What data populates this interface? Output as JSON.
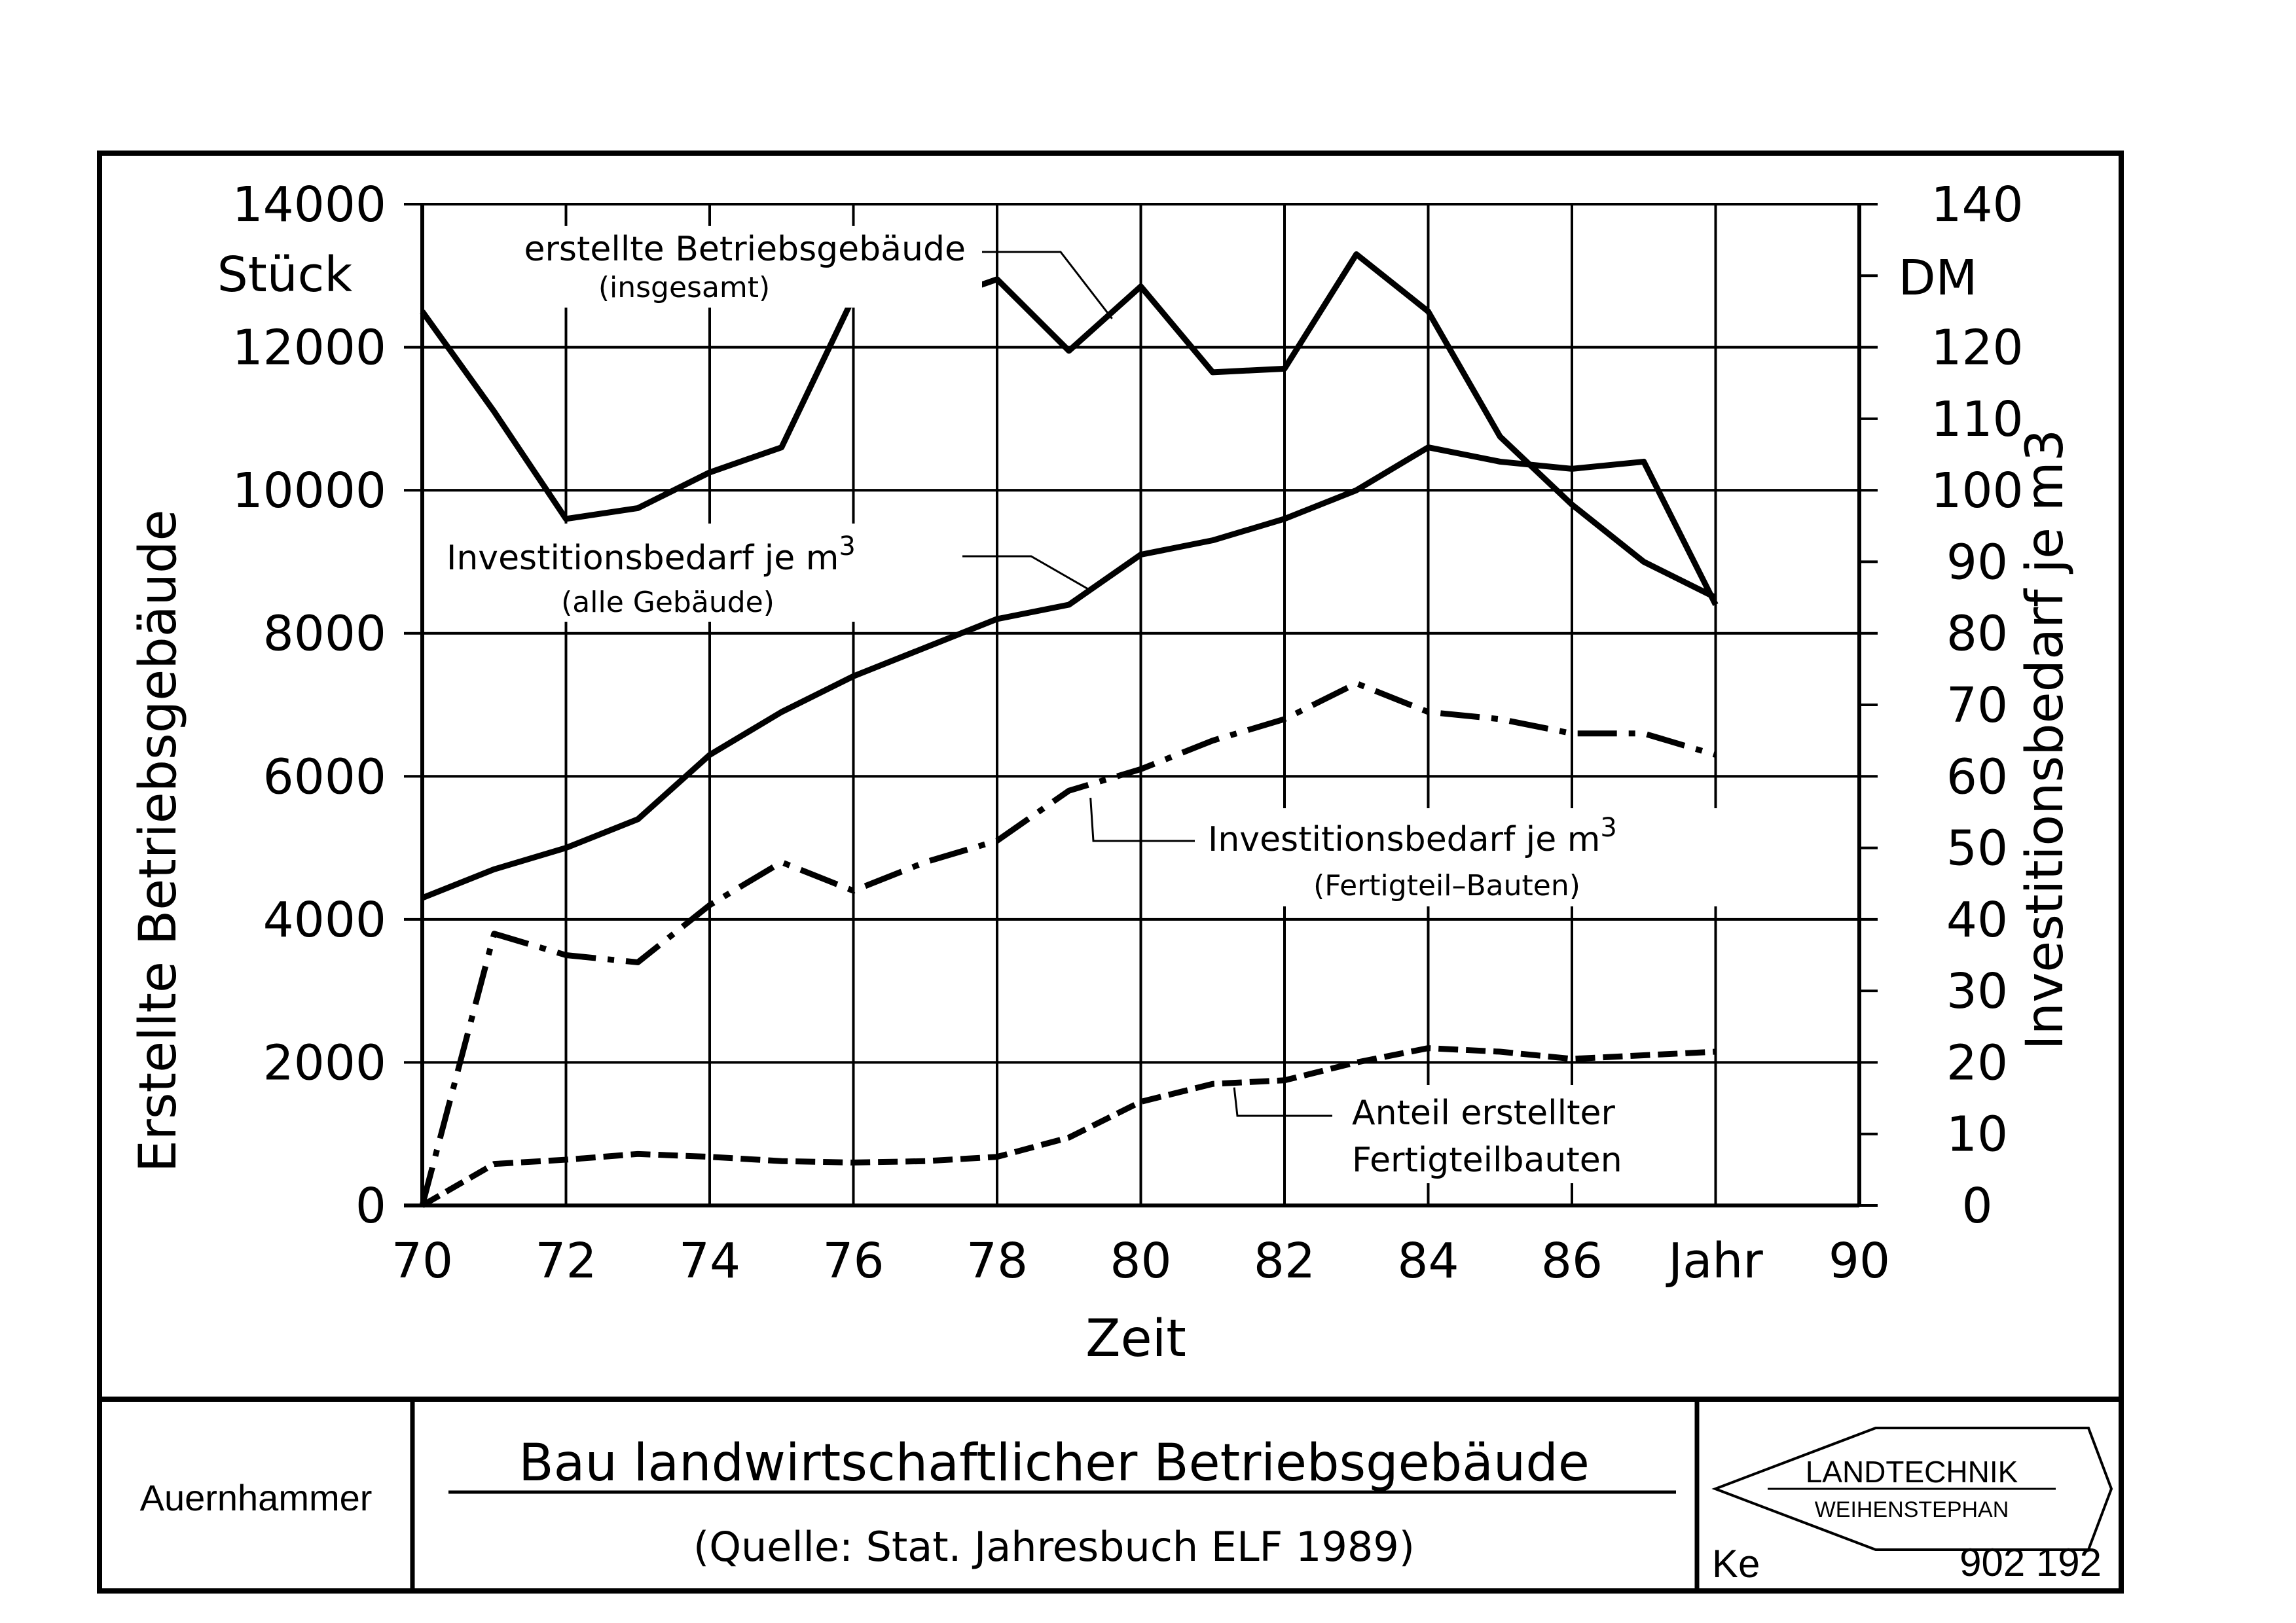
{
  "chart_data": {
    "type": "line",
    "x_axis": {
      "label": "Zeit",
      "min": 70,
      "max": 90,
      "ticks": [
        "70",
        "72",
        "74",
        "76",
        "78",
        "80",
        "82",
        "84",
        "86",
        "Jahr",
        "90"
      ]
    },
    "y_left": {
      "label": "Erstellte Betriebsgebäude",
      "unit": "Stück",
      "min": 0,
      "max": 14000,
      "ticks": [
        "0",
        "2000",
        "4000",
        "6000",
        "8000",
        "10000",
        "12000",
        "14000"
      ]
    },
    "y_right": {
      "label": "Investitionsbedarf je m3",
      "unit": "DM",
      "min": 0,
      "max": 140,
      "ticks": [
        "0",
        "10",
        "20",
        "30",
        "40",
        "50",
        "60",
        "70",
        "80",
        "90",
        "100",
        "110",
        "120",
        "130",
        "140"
      ],
      "tick_labels_shown": [
        "0",
        "10",
        "20",
        "30",
        "40",
        "50",
        "60",
        "70",
        "80",
        "90",
        "100",
        "110",
        "120",
        "",
        "140"
      ]
    },
    "grid": true,
    "series": [
      {
        "name": "erstellte Betriebsgebäude",
        "sub": "(insgesamt)",
        "axis": "left",
        "style": "solid",
        "x": [
          70,
          71,
          72,
          73,
          74,
          75,
          76,
          77,
          78,
          79,
          80,
          81,
          82,
          83,
          84,
          85,
          86,
          87,
          88
        ],
        "y": [
          12500,
          11100,
          9600,
          9750,
          10250,
          10600,
          12700,
          12600,
          12950,
          11950,
          12850,
          11650,
          11700,
          13300,
          12500,
          10750,
          9800,
          9000,
          8500
        ]
      },
      {
        "name": "Investitionsbedarf je m",
        "name_sup": "3",
        "sub": "(alle Gebäude)",
        "axis": "right",
        "style": "solid",
        "x": [
          70,
          71,
          72,
          73,
          74,
          75,
          76,
          77,
          78,
          79,
          80,
          81,
          82,
          83,
          84,
          85,
          86,
          87,
          88
        ],
        "y": [
          43,
          47,
          50,
          54,
          63,
          69,
          74,
          78,
          82,
          84,
          91,
          93,
          96,
          100,
          106,
          104,
          103,
          104,
          84
        ]
      },
      {
        "name": "Investitionsbedarf je m",
        "name_sup": "3",
        "sub": "(Fertigteil–Bauten)",
        "axis": "right",
        "style": "dashdot",
        "x": [
          70,
          71,
          72,
          73,
          74,
          75,
          76,
          77,
          78,
          79,
          80,
          81,
          82,
          83,
          84,
          85,
          86,
          87,
          88
        ],
        "y": [
          0,
          38,
          35,
          34,
          42,
          48,
          44,
          48,
          51,
          58,
          61,
          65,
          68,
          73,
          69,
          68,
          66,
          66,
          63
        ]
      },
      {
        "name": "Anteil erstellter",
        "name2": "Fertigteilbauten",
        "axis": "left",
        "style": "dashed",
        "x": [
          70,
          71,
          72,
          73,
          74,
          75,
          76,
          77,
          78,
          79,
          80,
          81,
          82,
          83,
          84,
          85,
          86,
          87,
          88
        ],
        "y": [
          0,
          580,
          640,
          720,
          680,
          620,
          600,
          620,
          680,
          950,
          1450,
          1700,
          1750,
          2000,
          2200,
          2150,
          2050,
          2100,
          2150
        ]
      }
    ]
  },
  "footer": {
    "author": "Auernhammer",
    "title": "Bau landwirtschaftlicher Betriebsgebäude",
    "source": "(Quelle: Stat. Jahresbuch ELF 1989)",
    "logo_main": "LANDTECHNIK",
    "logo_sub": "WEIHENSTEPHAN",
    "initials": "Ke",
    "drawing_number": "902 192"
  }
}
